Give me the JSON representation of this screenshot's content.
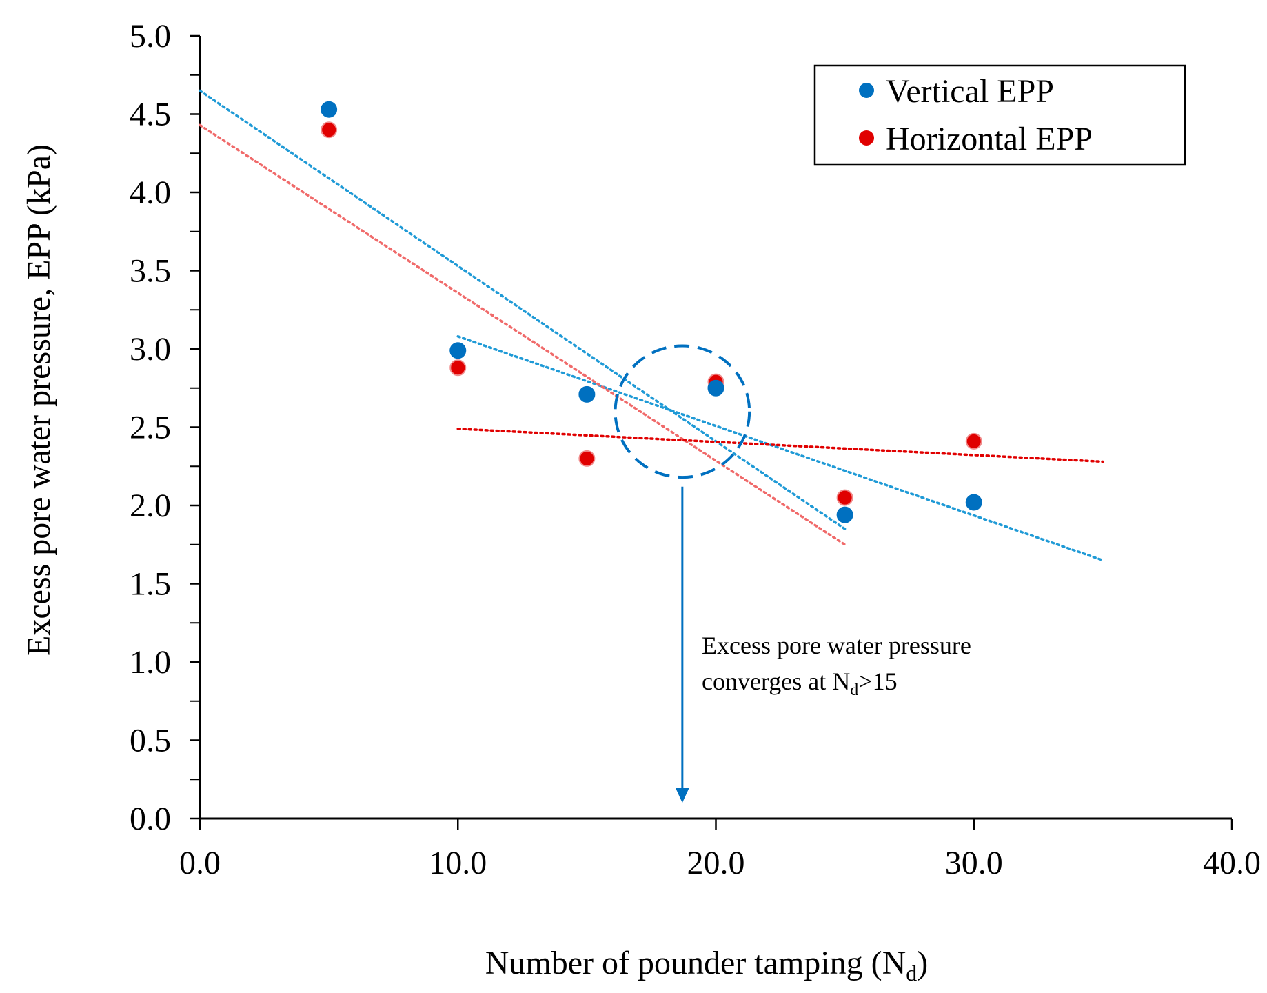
{
  "chart_data": {
    "type": "scatter",
    "xlabel": "Number of pounder tamping (N",
    "xlabel_sub": "d",
    "xlabel_close": ")",
    "ylabel": "Excess pore water pressure,  EPP (kPa)",
    "xlim": [
      0,
      40
    ],
    "ylim": [
      0,
      5
    ],
    "x_ticks": [
      0,
      10,
      20,
      30,
      40
    ],
    "x_tick_labels": [
      "0.0",
      "10.0",
      "20.0",
      "30.0",
      "40.0"
    ],
    "y_ticks": [
      0,
      0.5,
      1,
      1.5,
      2,
      2.5,
      3,
      3.5,
      4,
      4.5,
      5
    ],
    "y_tick_labels": [
      "0.0",
      "0.5",
      "1.0",
      "1.5",
      "2.0",
      "2.5",
      "3.0",
      "3.5",
      "4.0",
      "4.5",
      "5.0"
    ],
    "y_minor_step": 0.25,
    "grid": false,
    "legend_position": "top-right",
    "series": [
      {
        "name": "Vertical EPP",
        "color": "#0070c0",
        "x": [
          5,
          10,
          15,
          20,
          25,
          30
        ],
        "y": [
          4.53,
          2.99,
          2.71,
          2.75,
          1.94,
          2.02
        ]
      },
      {
        "name": "Horizontal EPP",
        "color": "#e00000",
        "x": [
          5,
          10,
          15,
          20,
          25,
          30
        ],
        "y": [
          4.4,
          2.88,
          2.3,
          2.79,
          2.05,
          2.41
        ]
      }
    ],
    "trendlines": [
      {
        "series": "Vertical EPP",
        "color": "#1f9ad6",
        "x": [
          0,
          25
        ],
        "y": [
          4.65,
          1.85
        ]
      },
      {
        "series": "Vertical EPP",
        "color": "#1f9ad6",
        "x": [
          10,
          35
        ],
        "y": [
          3.08,
          1.65
        ]
      },
      {
        "series": "Horizontal EPP",
        "color": "#f06a6a",
        "x": [
          0,
          25
        ],
        "y": [
          4.43,
          1.75
        ]
      },
      {
        "series": "Horizontal EPP",
        "color": "#e00000",
        "x": [
          10,
          35
        ],
        "y": [
          2.49,
          2.28
        ]
      }
    ],
    "annotation": {
      "line1": "Excess pore water pressure",
      "line2_prefix": "converges at N",
      "line2_sub": "d",
      "line2_suffix": ">15",
      "circle_center": [
        18.7,
        2.6
      ],
      "circle_radius_x": 2.6,
      "circle_radius_y": 0.42,
      "arrow_from": [
        18.7,
        2.12
      ],
      "arrow_to": [
        18.7,
        0.1
      ],
      "color": "#0070c0"
    }
  }
}
